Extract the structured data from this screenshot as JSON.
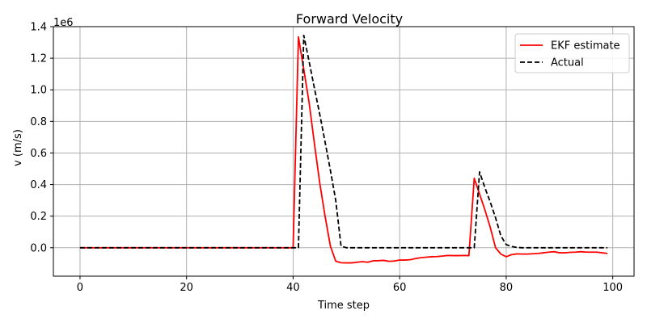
{
  "chart_data": {
    "type": "line",
    "title": "Forward Velocity",
    "xlabel": "Time step",
    "ylabel": "v (m/s)",
    "y_offset_label": "1e6",
    "xlim": [
      -5,
      104
    ],
    "ylim": [
      -180000,
      1400000
    ],
    "xticks": [
      0,
      20,
      40,
      60,
      80,
      100
    ],
    "yticks": [
      0,
      200000,
      400000,
      600000,
      800000,
      1000000,
      1200000,
      1400000
    ],
    "xtick_labels": [
      "0",
      "20",
      "40",
      "60",
      "80",
      "100"
    ],
    "ytick_labels": [
      "0.0",
      "0.2",
      "0.4",
      "0.6",
      "0.8",
      "1.0",
      "1.2",
      "1.4"
    ],
    "grid": true,
    "legend_position": "top-right",
    "series": [
      {
        "name": "EKF estimate",
        "color": "#ff0000",
        "style": "solid",
        "points": [
          [
            0,
            0
          ],
          [
            40,
            0
          ],
          [
            41,
            1335000
          ],
          [
            42,
            1130000
          ],
          [
            43,
            920000
          ],
          [
            44,
            660000
          ],
          [
            45,
            410000
          ],
          [
            46,
            200000
          ],
          [
            47,
            10000
          ],
          [
            48,
            -85000
          ],
          [
            49,
            -95000
          ],
          [
            50,
            -96000
          ],
          [
            51,
            -96000
          ],
          [
            52,
            -92000
          ],
          [
            53,
            -88000
          ],
          [
            54,
            -92000
          ],
          [
            55,
            -83000
          ],
          [
            56,
            -82000
          ],
          [
            57,
            -80000
          ],
          [
            58,
            -86000
          ],
          [
            59,
            -84000
          ],
          [
            60,
            -78000
          ],
          [
            61,
            -78000
          ],
          [
            62,
            -76000
          ],
          [
            63,
            -68000
          ],
          [
            64,
            -63000
          ],
          [
            65,
            -60000
          ],
          [
            66,
            -57000
          ],
          [
            67,
            -56000
          ],
          [
            68,
            -53000
          ],
          [
            69,
            -49000
          ],
          [
            70,
            -50000
          ],
          [
            71,
            -50000
          ],
          [
            72,
            -49000
          ],
          [
            73,
            -50000
          ],
          [
            74,
            440000
          ],
          [
            75,
            340000
          ],
          [
            76,
            240000
          ],
          [
            77,
            130000
          ],
          [
            78,
            0
          ],
          [
            79,
            -40000
          ],
          [
            80,
            -57000
          ],
          [
            81,
            -44000
          ],
          [
            82,
            -39000
          ],
          [
            83,
            -40000
          ],
          [
            84,
            -40000
          ],
          [
            85,
            -38000
          ],
          [
            86,
            -36000
          ],
          [
            87,
            -32000
          ],
          [
            88,
            -28000
          ],
          [
            89,
            -25000
          ],
          [
            90,
            -32000
          ],
          [
            91,
            -32000
          ],
          [
            92,
            -29000
          ],
          [
            93,
            -28000
          ],
          [
            94,
            -25000
          ],
          [
            95,
            -28000
          ],
          [
            96,
            -28000
          ],
          [
            97,
            -28000
          ],
          [
            98,
            -32000
          ],
          [
            99,
            -36000
          ]
        ]
      },
      {
        "name": "Actual",
        "color": "#000000",
        "style": "dashed",
        "points": [
          [
            0,
            0
          ],
          [
            41,
            0
          ],
          [
            42,
            1345000
          ],
          [
            43,
            1180000
          ],
          [
            44,
            1010000
          ],
          [
            45,
            845000
          ],
          [
            46,
            670000
          ],
          [
            47,
            490000
          ],
          [
            48,
            300000
          ],
          [
            49,
            10000
          ],
          [
            50,
            0
          ],
          [
            74,
            0
          ],
          [
            75,
            480000
          ],
          [
            76,
            380000
          ],
          [
            77,
            290000
          ],
          [
            78,
            190000
          ],
          [
            79,
            75000
          ],
          [
            80,
            20000
          ],
          [
            81,
            8000
          ],
          [
            82,
            2000
          ],
          [
            83,
            0
          ],
          [
            99,
            0
          ]
        ]
      }
    ]
  }
}
